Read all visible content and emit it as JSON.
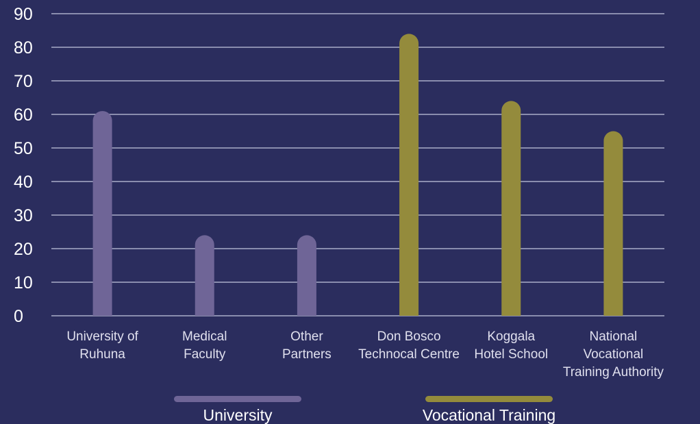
{
  "chart_data": {
    "type": "bar",
    "categories": [
      [
        "University of",
        "Ruhuna"
      ],
      [
        "Medical",
        "Faculty"
      ],
      [
        "Other",
        "Partners"
      ],
      [
        "Don Bosco",
        "Technocal Centre"
      ],
      [
        "Koggala",
        "Hotel School"
      ],
      [
        "National",
        "Vocational",
        "Training Authority"
      ]
    ],
    "values": [
      61,
      24,
      24,
      84,
      64,
      55
    ],
    "category_group": [
      0,
      0,
      0,
      1,
      1,
      1
    ],
    "groups": [
      {
        "name": "University",
        "color": "#6f6597"
      },
      {
        "name": "Vocational Training",
        "color": "#948b3c"
      }
    ],
    "yticks": [
      "0",
      "10",
      "20",
      "30",
      "40",
      "50",
      "60",
      "70",
      "80",
      "90"
    ],
    "ylim": [
      0,
      90
    ],
    "grid": true,
    "legend_position": "bottom",
    "title": "",
    "xlabel": "",
    "ylabel": ""
  }
}
